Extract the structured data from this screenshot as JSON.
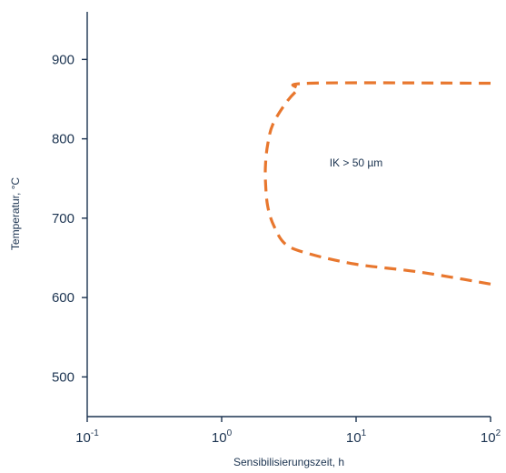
{
  "colors": {
    "axis": "#1b3350",
    "curve": "#e8772e",
    "background": "#ffffff"
  },
  "chart_data": {
    "type": "line",
    "title": "",
    "xlabel": "Sensibilisierungszeit, h",
    "ylabel": "Temperatur, °C",
    "x_scale": "log",
    "xlim": [
      0.1,
      100
    ],
    "ylim": [
      450,
      960
    ],
    "grid": false,
    "x_ticks": [
      {
        "value": 0.1,
        "base": "10",
        "exp": "-1"
      },
      {
        "value": 1,
        "base": "10",
        "exp": "0"
      },
      {
        "value": 10,
        "base": "10",
        "exp": "1"
      },
      {
        "value": 100,
        "base": "10",
        "exp": "2"
      }
    ],
    "y_ticks": [
      500,
      600,
      700,
      800,
      900
    ],
    "series": [
      {
        "style": "dashed",
        "color": "#e8772e",
        "points": [
          [
            100,
            870
          ],
          [
            4.5,
            870
          ],
          [
            3.7,
            862
          ],
          [
            3.0,
            845
          ],
          [
            2.4,
            818
          ],
          [
            2.2,
            793
          ],
          [
            2.12,
            768
          ],
          [
            2.12,
            745
          ],
          [
            2.2,
            715
          ],
          [
            2.45,
            690
          ],
          [
            3.0,
            667
          ],
          [
            4.5,
            655
          ],
          [
            10,
            642
          ],
          [
            30,
            632
          ],
          [
            100,
            617
          ]
        ]
      }
    ],
    "annotations": [
      {
        "text": "IK > 50 µm",
        "x": 10,
        "y": 770
      }
    ]
  }
}
